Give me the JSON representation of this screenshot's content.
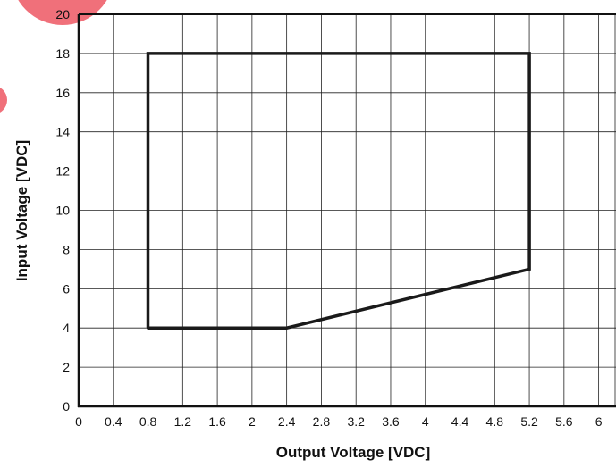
{
  "chart_data": {
    "type": "line",
    "title": "",
    "xlabel": "Output Voltage [VDC]",
    "ylabel": "Input Voltage [VDC]",
    "xlim": [
      0,
      6.2
    ],
    "ylim": [
      0,
      20
    ],
    "x_ticks": [
      "0",
      "0.4",
      "0.8",
      "1.2",
      "1.6",
      "2",
      "2.4",
      "2.8",
      "3.2",
      "3.6",
      "4",
      "4.4",
      "4.8",
      "5.2",
      "5.6",
      "6"
    ],
    "y_ticks": [
      "0",
      "2",
      "4",
      "6",
      "8",
      "10",
      "12",
      "14",
      "16",
      "18",
      "20"
    ],
    "grid": true,
    "series": [
      {
        "name": "",
        "points": [
          {
            "x": 0.8,
            "y": 4
          },
          {
            "x": 0.8,
            "y": 18
          },
          {
            "x": 5.2,
            "y": 18
          },
          {
            "x": 5.2,
            "y": 7
          },
          {
            "x": 2.4,
            "y": 4
          },
          {
            "x": 0.8,
            "y": 4
          }
        ]
      }
    ],
    "colors": {
      "line": "#1a1a1a",
      "grid": "#222222",
      "axis": "#111111",
      "decoration": "#f0707a"
    }
  }
}
